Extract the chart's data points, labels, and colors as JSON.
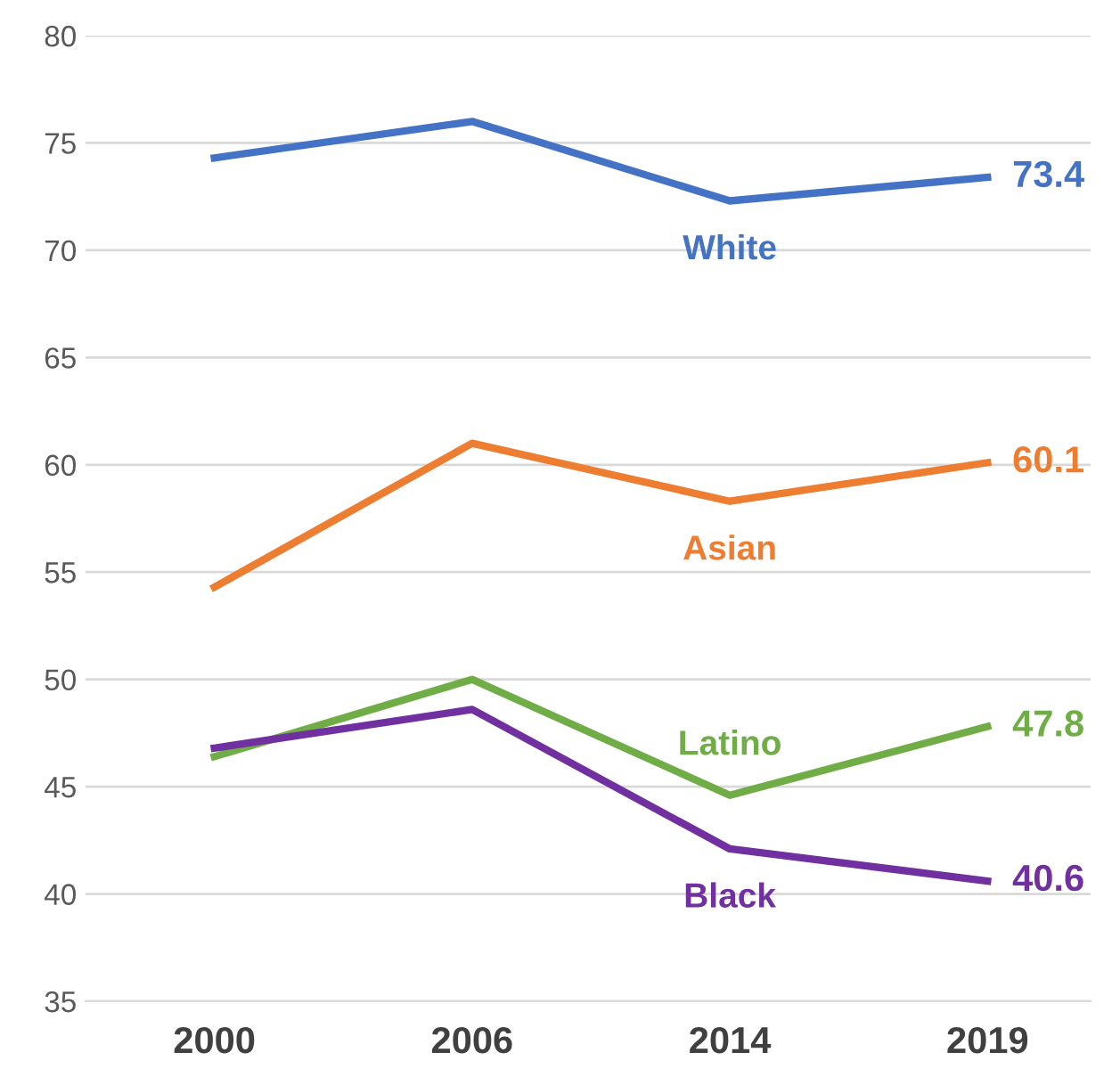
{
  "chart_data": {
    "type": "line",
    "categories": [
      "2000",
      "2006",
      "2014",
      "2019"
    ],
    "series": [
      {
        "name": "White",
        "color": "#4472c4",
        "values": [
          74.3,
          76.0,
          72.3,
          73.4
        ],
        "value_labels": [
          null,
          null,
          null,
          "73.4"
        ]
      },
      {
        "name": "Asian",
        "color": "#ed7d31",
        "values": [
          54.3,
          61.0,
          58.3,
          60.1
        ],
        "value_labels": [
          null,
          null,
          null,
          "60.1"
        ]
      },
      {
        "name": "Latino",
        "color": "#70ad47",
        "values": [
          46.4,
          50.0,
          44.6,
          47.8
        ],
        "value_labels": [
          null,
          null,
          null,
          "47.8"
        ]
      },
      {
        "name": "Black",
        "color": "#7030a0",
        "values": [
          46.8,
          48.6,
          42.1,
          40.6
        ],
        "value_labels": [
          null,
          null,
          null,
          "40.6"
        ]
      }
    ],
    "ylim": [
      35,
      80
    ],
    "yticks": [
      35,
      40,
      45,
      50,
      55,
      60,
      65,
      70,
      75,
      80
    ],
    "grid": "y",
    "legend": false,
    "marker": "none",
    "line_style": "solid"
  }
}
